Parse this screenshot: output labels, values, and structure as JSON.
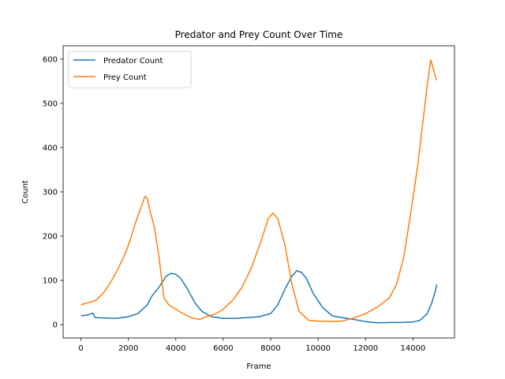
{
  "chart_data": {
    "type": "line",
    "title": "Predator and Prey Count Over Time",
    "xlabel": "Frame",
    "ylabel": "Count",
    "xlim": [
      -750,
      15750
    ],
    "ylim": [
      -30,
      630
    ],
    "xticks": [
      0,
      2000,
      4000,
      6000,
      8000,
      10000,
      12000,
      14000
    ],
    "yticks": [
      0,
      100,
      200,
      300,
      400,
      500,
      600
    ],
    "grid": false,
    "legend_position": "upper-left",
    "series": [
      {
        "name": "Predator Count",
        "color": "#1f77b4",
        "points": [
          [
            0,
            20
          ],
          [
            300,
            22
          ],
          [
            500,
            26
          ],
          [
            600,
            16
          ],
          [
            1000,
            15
          ],
          [
            1500,
            14
          ],
          [
            2000,
            18
          ],
          [
            2400,
            25
          ],
          [
            2800,
            45
          ],
          [
            3000,
            65
          ],
          [
            3300,
            85
          ],
          [
            3600,
            110
          ],
          [
            3800,
            116
          ],
          [
            4000,
            114
          ],
          [
            4200,
            105
          ],
          [
            4500,
            80
          ],
          [
            4800,
            50
          ],
          [
            5100,
            30
          ],
          [
            5500,
            18
          ],
          [
            6000,
            14
          ],
          [
            6500,
            14
          ],
          [
            7000,
            16
          ],
          [
            7500,
            18
          ],
          [
            8000,
            25
          ],
          [
            8300,
            45
          ],
          [
            8600,
            80
          ],
          [
            8900,
            110
          ],
          [
            9100,
            122
          ],
          [
            9300,
            118
          ],
          [
            9500,
            105
          ],
          [
            9800,
            70
          ],
          [
            10200,
            38
          ],
          [
            10600,
            20
          ],
          [
            11000,
            16
          ],
          [
            11500,
            12
          ],
          [
            12000,
            7
          ],
          [
            12500,
            4
          ],
          [
            13000,
            5
          ],
          [
            13500,
            5
          ],
          [
            14000,
            6
          ],
          [
            14300,
            10
          ],
          [
            14600,
            25
          ],
          [
            14800,
            50
          ],
          [
            14950,
            78
          ],
          [
            15000,
            91
          ]
        ]
      },
      {
        "name": "Prey Count",
        "color": "#ff7f0e",
        "points": [
          [
            0,
            45
          ],
          [
            300,
            50
          ],
          [
            500,
            52
          ],
          [
            700,
            58
          ],
          [
            1000,
            75
          ],
          [
            1300,
            100
          ],
          [
            1600,
            130
          ],
          [
            1900,
            165
          ],
          [
            2100,
            195
          ],
          [
            2300,
            230
          ],
          [
            2500,
            260
          ],
          [
            2700,
            290
          ],
          [
            2800,
            285
          ],
          [
            2900,
            260
          ],
          [
            3100,
            220
          ],
          [
            3300,
            150
          ],
          [
            3500,
            60
          ],
          [
            3700,
            45
          ],
          [
            4000,
            35
          ],
          [
            4300,
            25
          ],
          [
            4700,
            15
          ],
          [
            5000,
            12
          ],
          [
            5300,
            18
          ],
          [
            5700,
            25
          ],
          [
            6000,
            35
          ],
          [
            6400,
            55
          ],
          [
            6800,
            85
          ],
          [
            7200,
            130
          ],
          [
            7600,
            190
          ],
          [
            7900,
            240
          ],
          [
            8100,
            252
          ],
          [
            8300,
            240
          ],
          [
            8600,
            180
          ],
          [
            8900,
            90
          ],
          [
            9200,
            30
          ],
          [
            9600,
            10
          ],
          [
            10000,
            8
          ],
          [
            10500,
            7
          ],
          [
            11000,
            8
          ],
          [
            11500,
            15
          ],
          [
            12000,
            25
          ],
          [
            12500,
            40
          ],
          [
            13000,
            60
          ],
          [
            13300,
            90
          ],
          [
            13600,
            150
          ],
          [
            13900,
            250
          ],
          [
            14200,
            360
          ],
          [
            14400,
            450
          ],
          [
            14600,
            540
          ],
          [
            14750,
            598
          ],
          [
            14850,
            580
          ],
          [
            14950,
            560
          ],
          [
            15000,
            552
          ]
        ]
      }
    ]
  }
}
